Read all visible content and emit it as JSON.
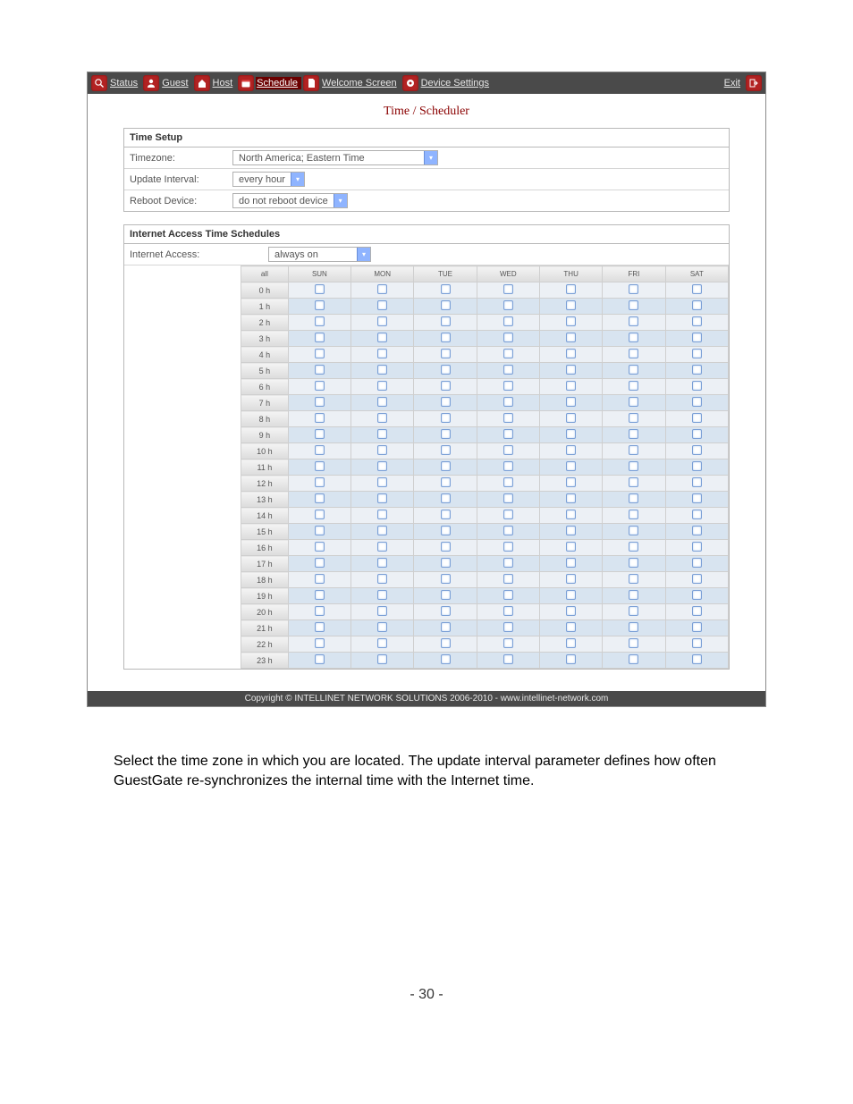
{
  "nav": {
    "status": "Status",
    "guest": "Guest",
    "host": "Host",
    "schedule": "Schedule",
    "welcome": "Welcome Screen",
    "device": "Device Settings",
    "exit": "Exit"
  },
  "title": "Time / Scheduler",
  "time_setup": {
    "heading": "Time Setup",
    "timezone_label": "Timezone:",
    "timezone_value": "North America; Eastern Time",
    "update_label": "Update Interval:",
    "update_value": "every hour",
    "reboot_label": "Reboot Device:",
    "reboot_value": "do not reboot device"
  },
  "sched": {
    "heading": "Internet Access Time Schedules",
    "access_label": "Internet Access:",
    "access_value": "always on",
    "col_all": "all",
    "days": [
      "SUN",
      "MON",
      "TUE",
      "WED",
      "THU",
      "FRI",
      "SAT"
    ],
    "hours": [
      "0 h",
      "1 h",
      "2 h",
      "3 h",
      "4 h",
      "5 h",
      "6 h",
      "7 h",
      "8 h",
      "9 h",
      "10 h",
      "11 h",
      "12 h",
      "13 h",
      "14 h",
      "15 h",
      "16 h",
      "17 h",
      "18 h",
      "19 h",
      "20 h",
      "21 h",
      "22 h",
      "23 h"
    ]
  },
  "footer": "Copyright © INTELLINET NETWORK SOLUTIONS 2006-2010 - www.intellinet-network.com",
  "doc_text": "Select the time zone in which you are located. The update interval parameter defines how often GuestGate re-synchronizes the internal time with the Internet time.",
  "page_number": "- 30 -",
  "style": {
    "brand_red": "#8a0000",
    "nav_bg": "#4a4a4a",
    "icon_bg": "#b22222",
    "row_shade": "#d8e4f0",
    "row_plain": "#ecf0f5",
    "dropdown_caret": "#8fb4ff"
  }
}
